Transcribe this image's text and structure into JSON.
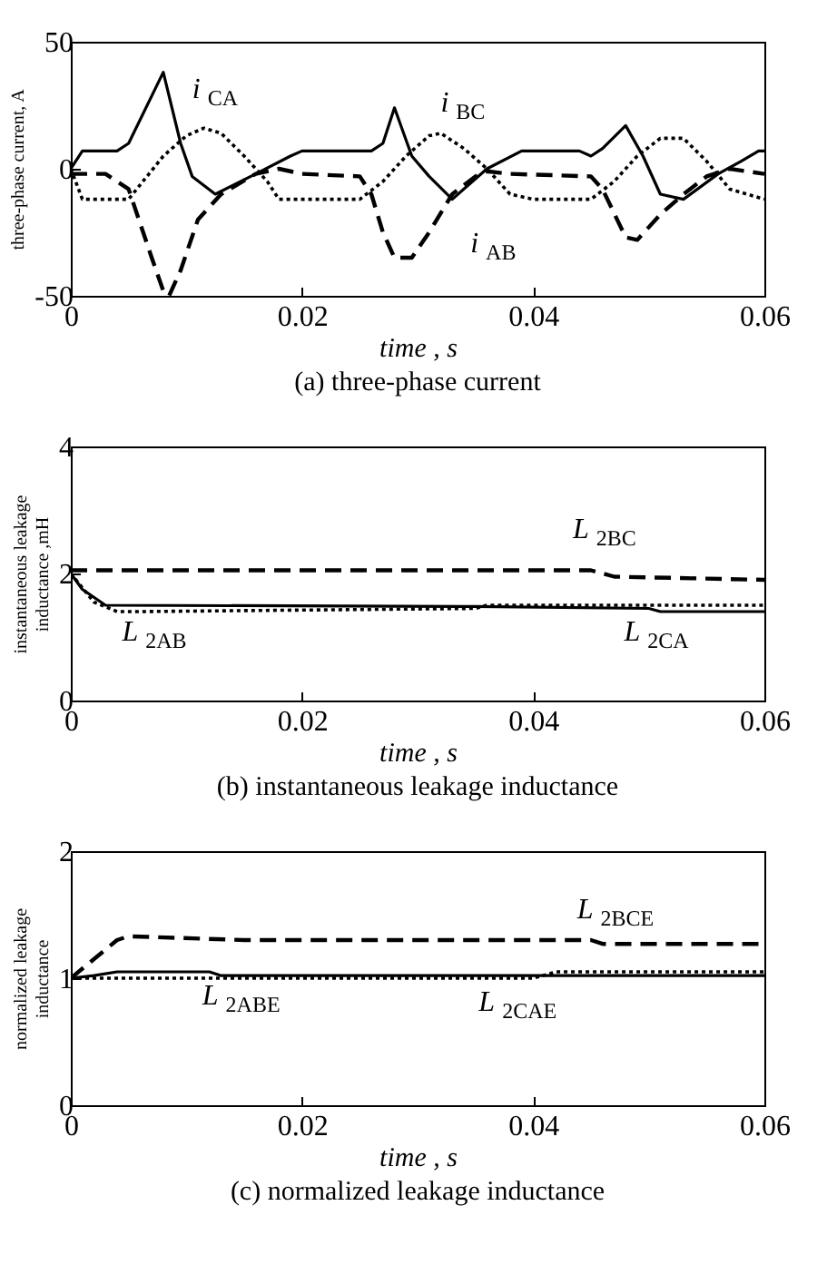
{
  "chart_data": [
    {
      "type": "line",
      "title": "(a) three-phase current",
      "xlabel": "time , s",
      "ylabel": "three-phase current, A",
      "xlim": [
        0,
        0.06
      ],
      "ylim": [
        -50,
        50
      ],
      "xticks": [
        0,
        0.02,
        0.04,
        0.06
      ],
      "yticks": [
        -50,
        0,
        50
      ],
      "grid": false,
      "legend": false,
      "series": [
        {
          "name": "i$_{CA}$",
          "color": "#000000",
          "line_style": "solid",
          "x": [
            0,
            0.001,
            0.004,
            0.005,
            0.008,
            0.0095,
            0.0105,
            0.0125,
            0.016,
            0.019,
            0.02,
            0.026,
            0.027,
            0.028,
            0.0295,
            0.031,
            0.033,
            0.036,
            0.039,
            0.044,
            0.045,
            0.046,
            0.048,
            0.0495,
            0.051,
            0.053,
            0.056,
            0.058,
            0.0595,
            0.06
          ],
          "values": [
            0,
            7,
            7,
            10,
            38,
            10,
            -3,
            -10,
            -2,
            5,
            7,
            7,
            10,
            24,
            5,
            -3,
            -12,
            0,
            7,
            7,
            5,
            8,
            17,
            5,
            -10,
            -12,
            -2,
            3,
            7,
            7
          ]
        },
        {
          "name": "i$_{BC}$",
          "color": "#000000",
          "line_style": "dotted",
          "x": [
            0,
            0.001,
            0.005,
            0.008,
            0.01,
            0.0115,
            0.013,
            0.015,
            0.017,
            0.018,
            0.025,
            0.027,
            0.029,
            0.031,
            0.032,
            0.034,
            0.036,
            0.038,
            0.04,
            0.045,
            0.047,
            0.049,
            0.051,
            0.053,
            0.055,
            0.057,
            0.06
          ],
          "values": [
            0,
            -12,
            -12,
            5,
            13,
            16,
            14,
            5,
            -5,
            -12,
            -12,
            -5,
            5,
            13,
            14,
            8,
            0,
            -10,
            -12,
            -12,
            -5,
            5,
            12,
            12,
            3,
            -8,
            -12
          ]
        },
        {
          "name": "i$_{AB}$",
          "color": "#000000",
          "line_style": "dashed",
          "x": [
            0,
            0.003,
            0.005,
            0.007,
            0.008,
            0.0085,
            0.0095,
            0.011,
            0.013,
            0.016,
            0.018,
            0.02,
            0.025,
            0.026,
            0.027,
            0.028,
            0.0295,
            0.031,
            0.033,
            0.035,
            0.036,
            0.038,
            0.045,
            0.046,
            0.048,
            0.049,
            0.051,
            0.053,
            0.055,
            0.057,
            0.06
          ],
          "values": [
            -2,
            -2,
            -8,
            -35,
            -48,
            -50,
            -40,
            -20,
            -10,
            -2,
            0,
            -2,
            -3,
            -10,
            -25,
            -35,
            -35,
            -25,
            -10,
            -3,
            -1,
            -2,
            -3,
            -8,
            -27,
            -28,
            -18,
            -10,
            -3,
            0,
            -2
          ]
        }
      ]
    },
    {
      "type": "line",
      "title": "(b) instantaneous leakage inductance",
      "xlabel": "time , s",
      "ylabel": "instantaneous leakage\ninductance ,mH",
      "xlim": [
        0,
        0.06
      ],
      "ylim": [
        0,
        4
      ],
      "xticks": [
        0,
        0.02,
        0.04,
        0.06
      ],
      "yticks": [
        0,
        2,
        4
      ],
      "grid": false,
      "legend": false,
      "series": [
        {
          "name": "L$_{2BC}$",
          "color": "#000000",
          "line_style": "dashed",
          "x": [
            0,
            0.045,
            0.047,
            0.06
          ],
          "values": [
            2.05,
            2.05,
            1.95,
            1.9
          ]
        },
        {
          "name": "L$_{2AB}$",
          "color": "#000000",
          "line_style": "dotted",
          "x": [
            0,
            0.002,
            0.004,
            0.006,
            0.035,
            0.036,
            0.06
          ],
          "values": [
            2,
            1.55,
            1.4,
            1.4,
            1.45,
            1.5,
            1.5
          ]
        },
        {
          "name": "L$_{2CA}$",
          "color": "#000000",
          "line_style": "solid",
          "x": [
            0,
            0.001,
            0.003,
            0.035,
            0.05,
            0.051,
            0.06
          ],
          "values": [
            2,
            1.75,
            1.5,
            1.48,
            1.45,
            1.4,
            1.4
          ]
        }
      ]
    },
    {
      "type": "line",
      "title": "(c) normalized leakage inductance",
      "xlabel": "time , s",
      "ylabel": "normalized leakage\ninductance",
      "xlim": [
        0,
        0.06
      ],
      "ylim": [
        0,
        2
      ],
      "xticks": [
        0,
        0.02,
        0.04,
        0.06
      ],
      "yticks": [
        0,
        1,
        2
      ],
      "grid": false,
      "legend": false,
      "series": [
        {
          "name": "L$_{2BCE}$",
          "color": "#000000",
          "line_style": "dashed",
          "x": [
            0,
            0.002,
            0.004,
            0.005,
            0.015,
            0.045,
            0.046,
            0.06
          ],
          "values": [
            1,
            1.15,
            1.3,
            1.33,
            1.3,
            1.3,
            1.27,
            1.27
          ]
        },
        {
          "name": "L$_{2ABE}$",
          "color": "#000000",
          "line_style": "solid",
          "x": [
            0,
            0.002,
            0.004,
            0.012,
            0.013,
            0.06
          ],
          "values": [
            1,
            1.02,
            1.05,
            1.05,
            1.02,
            1.02
          ]
        },
        {
          "name": "L$_{2CAE}$",
          "color": "#000000",
          "line_style": "dotted",
          "x": [
            0,
            0.04,
            0.042,
            0.06
          ],
          "values": [
            1,
            1,
            1.05,
            1.05
          ]
        }
      ]
    }
  ]
}
